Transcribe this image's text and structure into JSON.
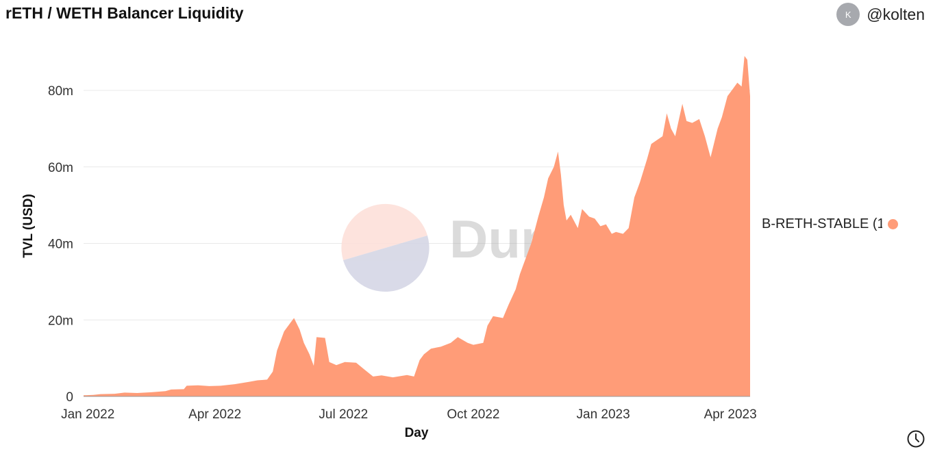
{
  "header": {
    "title": "rETH / WETH Balancer Liquidity",
    "author_initial": "K",
    "author_name": "@kolten"
  },
  "legend": {
    "label": "B-RETH-STABLE (1",
    "color": "#ff9c78"
  },
  "watermark": {
    "text": "Dune"
  },
  "colors": {
    "area": "#ff9c78",
    "grid": "#e8e8e8"
  },
  "icons": {
    "refresh": "clock-icon"
  },
  "chart_data": {
    "type": "area",
    "xlabel": "Day",
    "ylabel": "TVL (USD)",
    "x_ticks": [
      "Jan 2022",
      "Apr 2022",
      "Jul 2022",
      "Oct 2022",
      "Jan 2023",
      "Apr 2023"
    ],
    "y_ticks": [
      "0",
      "20m",
      "40m",
      "60m",
      "80m"
    ],
    "xlim": [
      "2021-12-29",
      "2023-04-15"
    ],
    "ylim": [
      0,
      80000000
    ],
    "grid": true,
    "legend_position": "right",
    "series": [
      {
        "name": "B-RETH-STABLE (1",
        "points": [
          [
            "2021-12-29",
            0.3
          ],
          [
            "2022-01-05",
            0.4
          ],
          [
            "2022-01-10",
            0.6
          ],
          [
            "2022-01-20",
            0.7
          ],
          [
            "2022-01-27",
            1.0
          ],
          [
            "2022-02-05",
            0.9
          ],
          [
            "2022-02-15",
            1.1
          ],
          [
            "2022-02-25",
            1.4
          ],
          [
            "2022-03-01",
            1.8
          ],
          [
            "2022-03-10",
            1.9
          ],
          [
            "2022-03-12",
            2.8
          ],
          [
            "2022-03-20",
            2.9
          ],
          [
            "2022-03-28",
            2.7
          ],
          [
            "2022-04-05",
            2.8
          ],
          [
            "2022-04-15",
            3.2
          ],
          [
            "2022-04-25",
            3.8
          ],
          [
            "2022-05-01",
            4.2
          ],
          [
            "2022-05-08",
            4.4
          ],
          [
            "2022-05-12",
            6.5
          ],
          [
            "2022-05-15",
            12.0
          ],
          [
            "2022-05-20",
            17.0
          ],
          [
            "2022-05-25",
            19.5
          ],
          [
            "2022-05-27",
            20.5
          ],
          [
            "2022-05-31",
            17.5
          ],
          [
            "2022-06-03",
            14.0
          ],
          [
            "2022-06-07",
            11.0
          ],
          [
            "2022-06-10",
            8.0
          ],
          [
            "2022-06-12",
            15.5
          ],
          [
            "2022-06-18",
            15.3
          ],
          [
            "2022-06-21",
            9.0
          ],
          [
            "2022-06-26",
            8.2
          ],
          [
            "2022-07-02",
            9.0
          ],
          [
            "2022-07-10",
            8.8
          ],
          [
            "2022-07-16",
            7.0
          ],
          [
            "2022-07-22",
            5.2
          ],
          [
            "2022-07-28",
            5.5
          ],
          [
            "2022-08-05",
            5.0
          ],
          [
            "2022-08-15",
            5.6
          ],
          [
            "2022-08-20",
            5.2
          ],
          [
            "2022-08-24",
            9.5
          ],
          [
            "2022-08-27",
            11.0
          ],
          [
            "2022-09-01",
            12.5
          ],
          [
            "2022-09-08",
            13.0
          ],
          [
            "2022-09-15",
            14.0
          ],
          [
            "2022-09-20",
            15.5
          ],
          [
            "2022-09-27",
            14.0
          ],
          [
            "2022-10-01",
            13.5
          ],
          [
            "2022-10-08",
            14.0
          ],
          [
            "2022-10-11",
            18.5
          ],
          [
            "2022-10-15",
            21.0
          ],
          [
            "2022-10-22",
            20.5
          ],
          [
            "2022-10-26",
            24.0
          ],
          [
            "2022-10-31",
            28.0
          ],
          [
            "2022-11-03",
            32.0
          ],
          [
            "2022-11-07",
            36.0
          ],
          [
            "2022-11-11",
            40.0
          ],
          [
            "2022-11-16",
            47.0
          ],
          [
            "2022-11-20",
            52.0
          ],
          [
            "2022-11-23",
            57.0
          ],
          [
            "2022-11-27",
            60.0
          ],
          [
            "2022-11-30",
            64.0
          ],
          [
            "2022-12-02",
            58.0
          ],
          [
            "2022-12-04",
            50.0
          ],
          [
            "2022-12-06",
            46.0
          ],
          [
            "2022-12-09",
            47.5
          ],
          [
            "2022-12-14",
            44.0
          ],
          [
            "2022-12-17",
            49.0
          ],
          [
            "2022-12-22",
            47.0
          ],
          [
            "2022-12-26",
            46.5
          ],
          [
            "2022-12-30",
            44.5
          ],
          [
            "2023-01-03",
            45.0
          ],
          [
            "2023-01-07",
            42.5
          ],
          [
            "2023-01-10",
            43.0
          ],
          [
            "2023-01-15",
            42.5
          ],
          [
            "2023-01-19",
            44.0
          ],
          [
            "2023-01-23",
            52.0
          ],
          [
            "2023-01-27",
            56.0
          ],
          [
            "2023-02-01",
            62.0
          ],
          [
            "2023-02-04",
            66.0
          ],
          [
            "2023-02-08",
            67.0
          ],
          [
            "2023-02-12",
            68.0
          ],
          [
            "2023-02-15",
            74.0
          ],
          [
            "2023-02-18",
            70.0
          ],
          [
            "2023-02-21",
            68.0
          ],
          [
            "2023-02-26",
            76.5
          ],
          [
            "2023-03-01",
            72.0
          ],
          [
            "2023-03-05",
            71.5
          ],
          [
            "2023-03-10",
            72.5
          ],
          [
            "2023-03-14",
            68.0
          ],
          [
            "2023-03-18",
            62.5
          ],
          [
            "2023-03-23",
            70.0
          ],
          [
            "2023-03-26",
            73.0
          ],
          [
            "2023-03-30",
            78.5
          ],
          [
            "2023-04-03",
            80.5
          ],
          [
            "2023-04-06",
            82.0
          ],
          [
            "2023-04-09",
            81.0
          ],
          [
            "2023-04-11",
            89.0
          ],
          [
            "2023-04-13",
            88.0
          ],
          [
            "2023-04-15",
            78.5
          ]
        ]
      }
    ]
  }
}
